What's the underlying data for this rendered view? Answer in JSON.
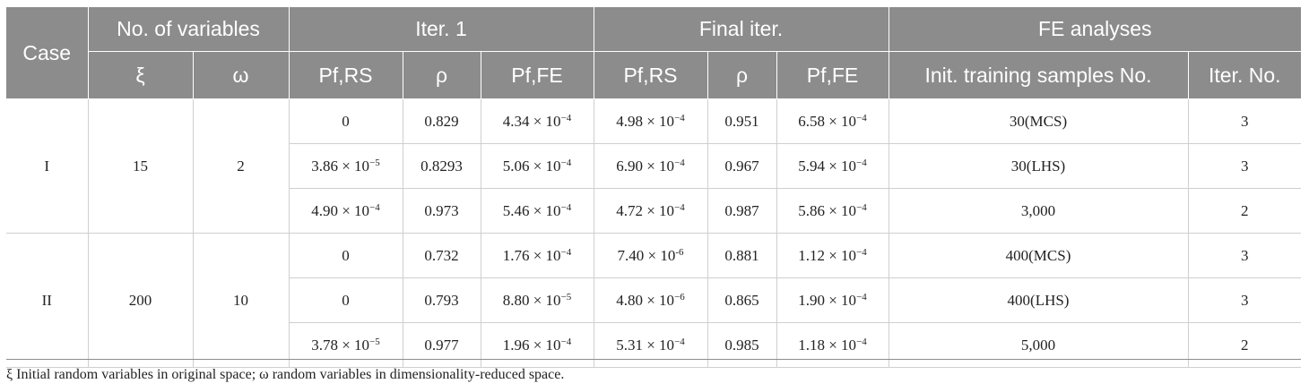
{
  "table": {
    "headers": {
      "case": "Case",
      "num_vars": "No. of variables",
      "iter1": "Iter. 1",
      "final_iter": "Final iter.",
      "fe": "FE analyses",
      "sub": [
        "ξ",
        "ω",
        "Pf,RS",
        "ρ",
        "Pf,FE",
        "Pf,RS",
        "ρ",
        "Pf,FE",
        "Init. training samples No.",
        "Iter. No."
      ]
    },
    "groups": [
      {
        "case": "I",
        "xi": "15",
        "omega": "2",
        "rows": [
          {
            "pf_rs1": {
              "m": "0",
              "e": ""
            },
            "rho1": "0.829",
            "pf_fe1": {
              "m": "4.34 × 10",
              "e": "−4"
            },
            "pf_rs2": {
              "m": "4.98 × 10",
              "e": "−4"
            },
            "rho2": "0.951",
            "pf_fe2": {
              "m": "6.58 × 10",
              "e": "−4"
            },
            "samples": "30(MCS)",
            "iter": "3"
          },
          {
            "pf_rs1": {
              "m": "3.86 × 10",
              "e": "−5"
            },
            "rho1": "0.8293",
            "pf_fe1": {
              "m": "5.06 × 10",
              "e": "−4"
            },
            "pf_rs2": {
              "m": "6.90 × 10",
              "e": "−4"
            },
            "rho2": "0.967",
            "pf_fe2": {
              "m": "5.94 × 10",
              "e": "−4"
            },
            "samples": "30(LHS)",
            "iter": "3"
          },
          {
            "pf_rs1": {
              "m": "4.90 × 10",
              "e": "−4"
            },
            "rho1": "0.973",
            "pf_fe1": {
              "m": "5.46 × 10",
              "e": "−4"
            },
            "pf_rs2": {
              "m": "4.72 × 10",
              "e": "−4"
            },
            "rho2": "0.987",
            "pf_fe2": {
              "m": "5.86 × 10",
              "e": "−4"
            },
            "samples": "3,000",
            "iter": "2"
          }
        ]
      },
      {
        "case": "II",
        "xi": "200",
        "omega": "10",
        "rows": [
          {
            "pf_rs1": {
              "m": "0",
              "e": ""
            },
            "rho1": "0.732",
            "pf_fe1": {
              "m": "1.76 × 10",
              "e": "−4"
            },
            "pf_rs2": {
              "m": "7.40 × 10",
              "e": "-6"
            },
            "rho2": "0.881",
            "pf_fe2": {
              "m": "1.12 × 10",
              "e": "−4"
            },
            "samples": "400(MCS)",
            "iter": "3"
          },
          {
            "pf_rs1": {
              "m": "0",
              "e": ""
            },
            "rho1": "0.793",
            "pf_fe1": {
              "m": "8.80 × 10",
              "e": "−5"
            },
            "pf_rs2": {
              "m": "4.80 × 10",
              "e": "−6"
            },
            "rho2": "0.865",
            "pf_fe2": {
              "m": "1.90 × 10",
              "e": "−4"
            },
            "samples": "400(LHS)",
            "iter": "3"
          },
          {
            "pf_rs1": {
              "m": "3.78 × 10",
              "e": "−5"
            },
            "rho1": "0.977",
            "pf_fe1": {
              "m": "1.96 × 10",
              "e": "−4"
            },
            "pf_rs2": {
              "m": "5.31 × 10",
              "e": "−4"
            },
            "rho2": "0.985",
            "pf_fe2": {
              "m": "1.18 × 10",
              "e": "−4"
            },
            "samples": "5,000",
            "iter": "2"
          }
        ]
      }
    ],
    "footnote": "ξ Initial random variables in original space; ω random variables in dimensionality-reduced space."
  }
}
